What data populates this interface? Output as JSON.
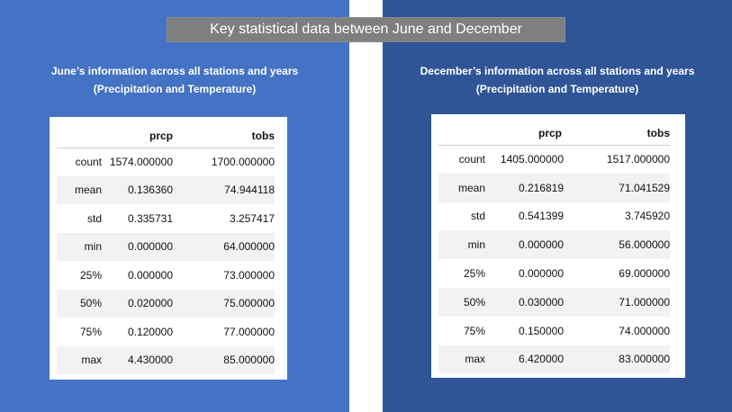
{
  "banner": "Key statistical data between June and December",
  "june": {
    "heading_line1": "June’s information across all stations and years",
    "heading_line2": "(Precipitation and Temperature)",
    "columns": [
      "prcp",
      "tobs"
    ],
    "rows": [
      {
        "label": "count",
        "prcp": "1574.000000",
        "tobs": "1700.000000"
      },
      {
        "label": "mean",
        "prcp": "0.136360",
        "tobs": "74.944118"
      },
      {
        "label": "std",
        "prcp": "0.335731",
        "tobs": "3.257417"
      },
      {
        "label": "min",
        "prcp": "0.000000",
        "tobs": "64.000000"
      },
      {
        "label": "25%",
        "prcp": "0.000000",
        "tobs": "73.000000"
      },
      {
        "label": "50%",
        "prcp": "0.020000",
        "tobs": "75.000000"
      },
      {
        "label": "75%",
        "prcp": "0.120000",
        "tobs": "77.000000"
      },
      {
        "label": "max",
        "prcp": "4.430000",
        "tobs": "85.000000"
      }
    ]
  },
  "december": {
    "heading_line1": "December’s information across all stations and years",
    "heading_line2": "(Precipitation and Temperature)",
    "columns": [
      "prcp",
      "tobs"
    ],
    "rows": [
      {
        "label": "count",
        "prcp": "1405.000000",
        "tobs": "1517.000000"
      },
      {
        "label": "mean",
        "prcp": "0.216819",
        "tobs": "71.041529"
      },
      {
        "label": "std",
        "prcp": "0.541399",
        "tobs": "3.745920"
      },
      {
        "label": "min",
        "prcp": "0.000000",
        "tobs": "56.000000"
      },
      {
        "label": "25%",
        "prcp": "0.000000",
        "tobs": "69.000000"
      },
      {
        "label": "50%",
        "prcp": "0.030000",
        "tobs": "71.000000"
      },
      {
        "label": "75%",
        "prcp": "0.150000",
        "tobs": "74.000000"
      },
      {
        "label": "max",
        "prcp": "6.420000",
        "tobs": "83.000000"
      }
    ]
  },
  "colors": {
    "left_panel": "#4472c4",
    "right_panel": "#2f5597",
    "banner": "#7f7f7f"
  }
}
